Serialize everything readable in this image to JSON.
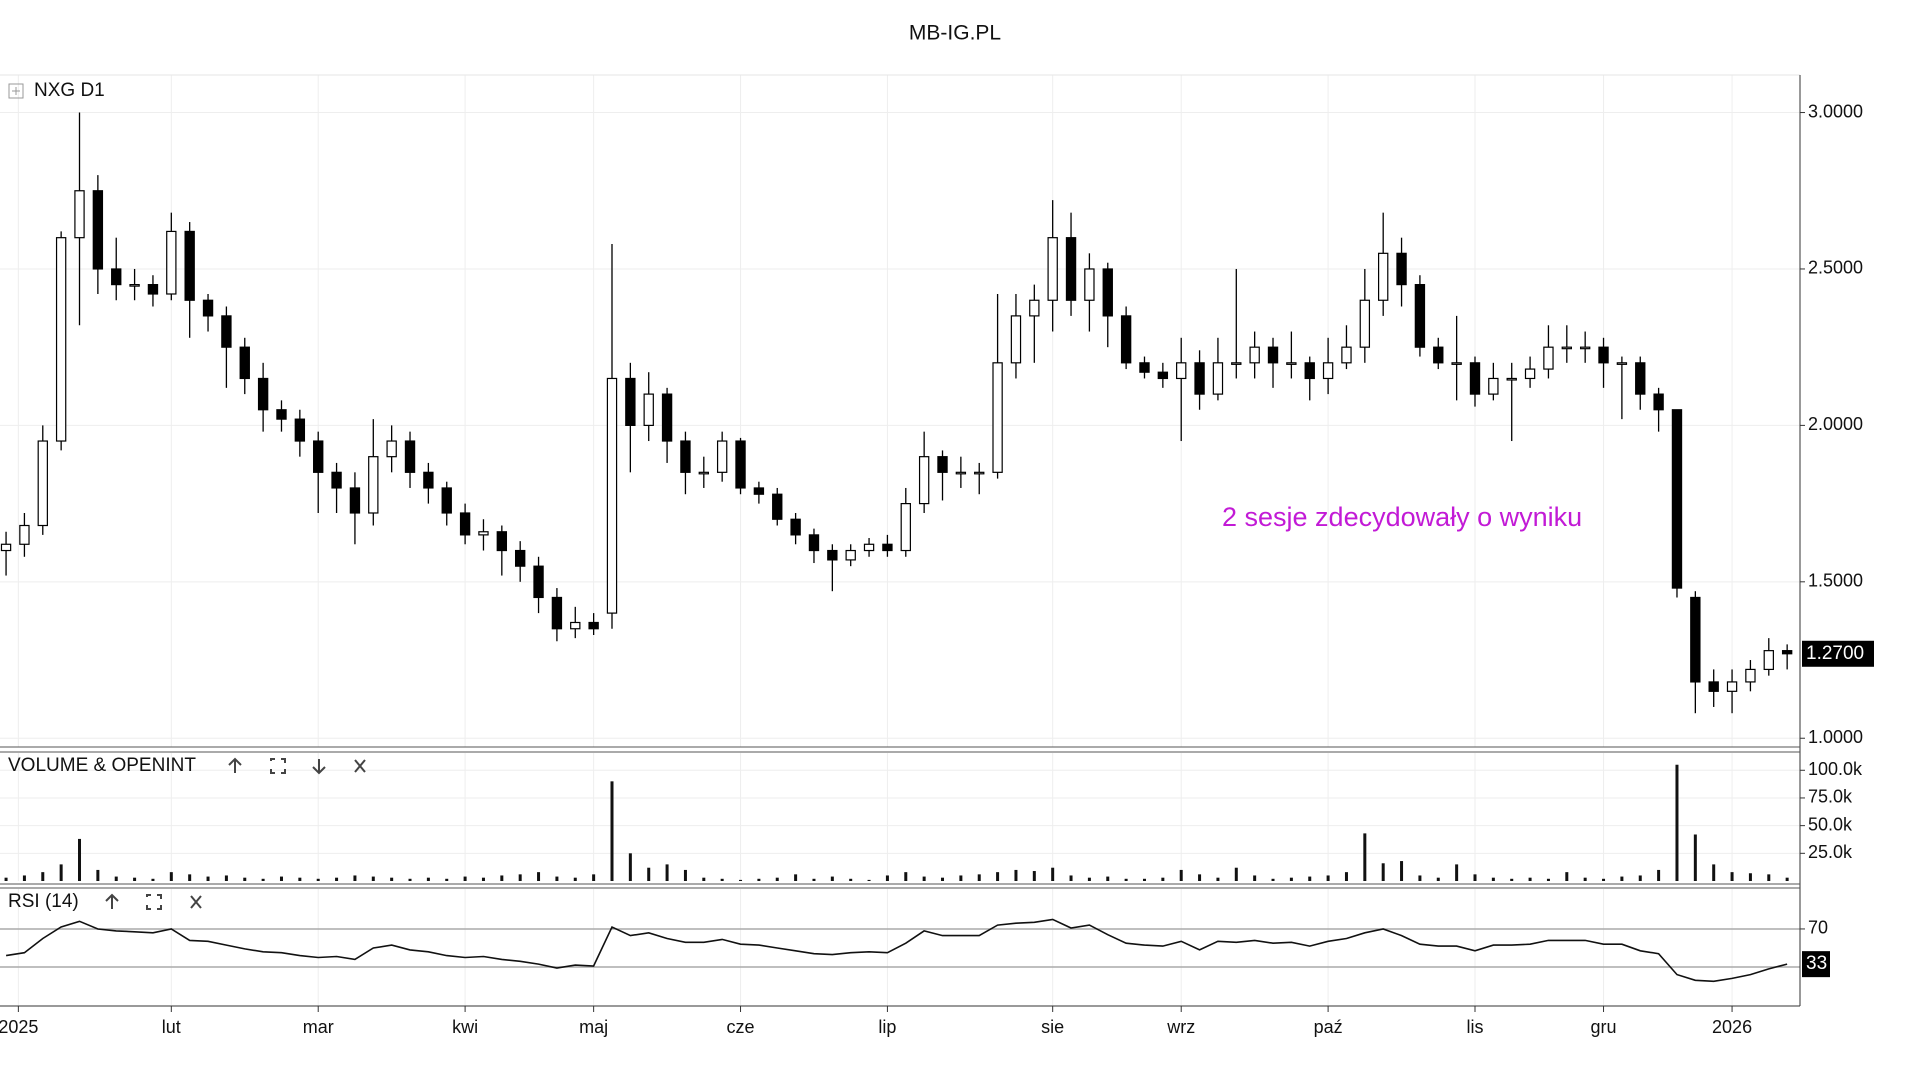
{
  "chart_data": [
    {
      "type": "candlestick",
      "title": "MB-IG.PL",
      "label": "NXG D1",
      "annotation": "2 sesje zdecydowały o wyniku",
      "xlim": [
        -0.33,
        97.7
      ],
      "ylim": [
        0.972,
        3.12
      ],
      "yticks": [
        {
          "value": 1,
          "label": "1.0000"
        },
        {
          "value": 1.5,
          "label": "1.5000"
        },
        {
          "value": 2,
          "label": "2.0000"
        },
        {
          "value": 2.5,
          "label": "2.5000"
        },
        {
          "value": 3,
          "label": "3.0000"
        }
      ],
      "grid": true,
      "up_color": "#ffffff",
      "down_color": "#000000",
      "last_value": {
        "value": 1.27,
        "label": "1.2700"
      },
      "open": [
        1.6,
        1.62,
        1.68,
        1.95,
        2.6,
        2.75,
        2.5,
        2.45,
        2.45,
        2.42,
        2.62,
        2.4,
        2.35,
        2.25,
        2.15,
        2.05,
        2.02,
        1.95,
        1.85,
        1.8,
        1.72,
        1.9,
        1.95,
        1.85,
        1.8,
        1.72,
        1.65,
        1.66,
        1.6,
        1.55,
        1.45,
        1.35,
        1.37,
        1.4,
        2.15,
        2.0,
        2.1,
        1.95,
        1.85,
        1.85,
        1.95,
        1.8,
        1.78,
        1.7,
        1.65,
        1.6,
        1.57,
        1.6,
        1.62,
        1.6,
        1.75,
        1.9,
        1.85,
        1.85,
        1.85,
        2.2,
        2.35,
        2.4,
        2.6,
        2.4,
        2.5,
        2.35,
        2.2,
        2.17,
        2.15,
        2.2,
        2.1,
        2.2,
        2.2,
        2.25,
        2.2,
        2.2,
        2.15,
        2.2,
        2.25,
        2.4,
        2.55,
        2.45,
        2.25,
        2.2,
        2.2,
        2.1,
        2.15,
        2.15,
        2.18,
        2.25,
        2.25,
        2.25,
        2.2,
        2.2,
        2.1,
        2.05,
        1.45,
        1.18,
        1.15,
        1.18,
        1.22,
        1.28
      ],
      "high": [
        1.66,
        1.72,
        2.0,
        2.62,
        3.0,
        2.8,
        2.6,
        2.5,
        2.48,
        2.68,
        2.65,
        2.42,
        2.38,
        2.28,
        2.2,
        2.08,
        2.05,
        1.98,
        1.88,
        1.85,
        2.02,
        2.0,
        1.98,
        1.88,
        1.82,
        1.75,
        1.7,
        1.68,
        1.63,
        1.58,
        1.48,
        1.42,
        1.4,
        2.58,
        2.2,
        2.17,
        2.12,
        1.98,
        1.9,
        1.98,
        1.96,
        1.82,
        1.8,
        1.72,
        1.67,
        1.62,
        1.62,
        1.64,
        1.65,
        1.8,
        1.98,
        1.92,
        1.9,
        1.88,
        2.42,
        2.42,
        2.45,
        2.72,
        2.68,
        2.55,
        2.52,
        2.38,
        2.22,
        2.2,
        2.28,
        2.24,
        2.28,
        2.5,
        2.3,
        2.28,
        2.3,
        2.22,
        2.28,
        2.32,
        2.5,
        2.68,
        2.6,
        2.48,
        2.28,
        2.35,
        2.22,
        2.2,
        2.2,
        2.22,
        2.32,
        2.32,
        2.3,
        2.28,
        2.22,
        2.22,
        2.12,
        2.05,
        1.47,
        1.22,
        1.22,
        1.25,
        1.32,
        1.3
      ],
      "low": [
        1.52,
        1.58,
        1.65,
        1.92,
        2.32,
        2.42,
        2.4,
        2.4,
        2.38,
        2.4,
        2.28,
        2.3,
        2.12,
        2.1,
        1.98,
        1.98,
        1.9,
        1.72,
        1.72,
        1.62,
        1.68,
        1.85,
        1.8,
        1.75,
        1.68,
        1.62,
        1.6,
        1.52,
        1.5,
        1.4,
        1.31,
        1.32,
        1.33,
        1.35,
        1.85,
        1.95,
        1.88,
        1.78,
        1.8,
        1.82,
        1.78,
        1.75,
        1.68,
        1.62,
        1.56,
        1.47,
        1.55,
        1.58,
        1.58,
        1.58,
        1.72,
        1.76,
        1.8,
        1.78,
        1.83,
        2.15,
        2.2,
        2.3,
        2.35,
        2.3,
        2.25,
        2.18,
        2.15,
        2.12,
        1.95,
        2.05,
        2.08,
        2.15,
        2.15,
        2.12,
        2.15,
        2.08,
        2.1,
        2.18,
        2.2,
        2.35,
        2.38,
        2.22,
        2.18,
        2.08,
        2.06,
        2.08,
        1.95,
        2.12,
        2.15,
        2.2,
        2.2,
        2.12,
        2.02,
        2.05,
        1.98,
        1.45,
        1.08,
        1.1,
        1.08,
        1.15,
        1.2,
        1.22
      ],
      "close": [
        1.62,
        1.68,
        1.95,
        2.6,
        2.75,
        2.5,
        2.45,
        2.45,
        2.42,
        2.62,
        2.4,
        2.35,
        2.25,
        2.15,
        2.05,
        2.02,
        1.95,
        1.85,
        1.8,
        1.72,
        1.9,
        1.95,
        1.85,
        1.8,
        1.72,
        1.65,
        1.66,
        1.6,
        1.55,
        1.45,
        1.35,
        1.37,
        1.35,
        2.15,
        2.0,
        2.1,
        1.95,
        1.85,
        1.85,
        1.95,
        1.8,
        1.78,
        1.7,
        1.65,
        1.6,
        1.57,
        1.6,
        1.62,
        1.6,
        1.75,
        1.9,
        1.85,
        1.85,
        1.85,
        2.2,
        2.35,
        2.4,
        2.6,
        2.4,
        2.5,
        2.35,
        2.2,
        2.17,
        2.15,
        2.2,
        2.1,
        2.2,
        2.2,
        2.25,
        2.2,
        2.2,
        2.15,
        2.2,
        2.25,
        2.4,
        2.55,
        2.45,
        2.25,
        2.2,
        2.2,
        2.1,
        2.15,
        2.15,
        2.18,
        2.25,
        2.25,
        2.25,
        2.2,
        2.2,
        2.1,
        2.05,
        1.48,
        1.18,
        1.15,
        1.18,
        1.22,
        1.28,
        1.27
      ]
    },
    {
      "type": "bar",
      "label": "VOLUME & OPENINT",
      "color": "#111111",
      "xlim": [
        -0.33,
        97.7
      ],
      "ylim": [
        0,
        115600
      ],
      "yticks": [
        {
          "value": 25000,
          "label": "25.0k"
        },
        {
          "value": 50000,
          "label": "50.0k"
        },
        {
          "value": 75000,
          "label": "75.0k"
        },
        {
          "value": 100000,
          "label": "100.0k"
        }
      ],
      "grid": true,
      "values": [
        3000,
        5000,
        8000,
        15000,
        38000,
        10000,
        4000,
        3000,
        2000,
        8000,
        6000,
        4000,
        5000,
        3000,
        2000,
        4000,
        3000,
        2000,
        3000,
        5000,
        4000,
        3000,
        2000,
        3000,
        2000,
        4000,
        3000,
        5000,
        6000,
        8000,
        4000,
        3000,
        6000,
        90000,
        25000,
        12000,
        15000,
        10000,
        3000,
        2000,
        1000,
        2000,
        3000,
        6000,
        2000,
        4000,
        2000,
        1000,
        5000,
        8000,
        4000,
        3000,
        5000,
        6000,
        8000,
        10000,
        9000,
        12000,
        5000,
        3000,
        4000,
        2000,
        2000,
        3000,
        10000,
        6000,
        3000,
        12000,
        5000,
        2000,
        3000,
        4000,
        5000,
        8000,
        43000,
        16000,
        18000,
        5000,
        3000,
        15000,
        6000,
        3000,
        2000,
        3000,
        2000,
        8000,
        3000,
        2000,
        4000,
        5000,
        10000,
        105000,
        42000,
        15000,
        8000,
        7000,
        6000,
        3000
      ]
    },
    {
      "type": "line",
      "label": "RSI (14)",
      "color": "#111111",
      "xlim": [
        -0.33,
        97.7
      ],
      "ylim": [
        -11,
        112
      ],
      "yticks": [
        70
      ],
      "levels": [
        30,
        70
      ],
      "grid": true,
      "last_value": 33,
      "xticks": [
        {
          "value": 0.67,
          "label": "2025"
        },
        {
          "value": 9,
          "label": "lut"
        },
        {
          "value": 17,
          "label": "mar"
        },
        {
          "value": 25,
          "label": "kwi"
        },
        {
          "value": 32,
          "label": "maj"
        },
        {
          "value": 40,
          "label": "cze"
        },
        {
          "value": 48,
          "label": "lip"
        },
        {
          "value": 57,
          "label": "sie"
        },
        {
          "value": 64,
          "label": "wrz"
        },
        {
          "value": 72,
          "label": "paź"
        },
        {
          "value": 80,
          "label": "lis"
        },
        {
          "value": 87,
          "label": "gru"
        },
        {
          "value": 94,
          "label": "2026"
        }
      ],
      "values": [
        42,
        45,
        60,
        72,
        78,
        70,
        68,
        67,
        66,
        70,
        58,
        57,
        53,
        49,
        46,
        45,
        42,
        40,
        41,
        38,
        50,
        53,
        48,
        46,
        42,
        40,
        41,
        38,
        36,
        33,
        29,
        32,
        31,
        72,
        63,
        66,
        60,
        56,
        56,
        59,
        54,
        53,
        50,
        47,
        44,
        43,
        45,
        46,
        45,
        55,
        68,
        63,
        63,
        63,
        74,
        76,
        77,
        80,
        71,
        74,
        64,
        55,
        53,
        52,
        57,
        48,
        57,
        56,
        58,
        55,
        56,
        52,
        57,
        60,
        66,
        70,
        63,
        54,
        52,
        52,
        47,
        53,
        53,
        54,
        58,
        58,
        58,
        54,
        54,
        47,
        44,
        22,
        16,
        15,
        18,
        22,
        28,
        33
      ]
    }
  ]
}
